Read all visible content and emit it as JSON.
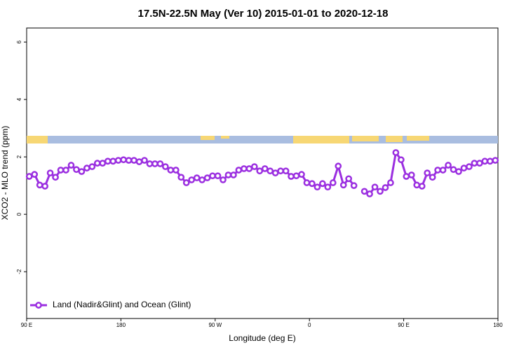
{
  "chart_data": {
    "type": "line",
    "title": "17.5N-22.5N May (Ver 10)   2015-01-01 to 2020-12-18",
    "x_label": "Longitude (deg E)",
    "y_label": "XCO2 - MLO trend (ppm)",
    "x": [
      92.5,
      97.5,
      102.5,
      107.5,
      112.5,
      117.5,
      122.5,
      127.5,
      132.5,
      137.5,
      142.5,
      147.5,
      152.5,
      157.5,
      162.5,
      167.5,
      172.5,
      177.5,
      182.5,
      187.5,
      192.5,
      197.5,
      202.5,
      207.5,
      212.5,
      217.5,
      222.5,
      227.5,
      232.5,
      237.5,
      242.5,
      247.5,
      252.5,
      257.5,
      262.5,
      267.5,
      272.5,
      277.5,
      282.5,
      287.5,
      292.5,
      297.5,
      302.5,
      307.5,
      312.5,
      317.5,
      322.5,
      327.5,
      332.5,
      337.5,
      342.5,
      347.5,
      352.5,
      357.5,
      362.5,
      367.5,
      372.5,
      377.5,
      382.5,
      387.5,
      392.5,
      397.5,
      402.5,
      407.5,
      412.5,
      417.5,
      422.5,
      427.5,
      432.5,
      437.5,
      442.5,
      447.5,
      452.5,
      457.5,
      462.5,
      467.5,
      472.5,
      477.5,
      482.5,
      487.5,
      492.5,
      497.5,
      502.5,
      507.5,
      512.5,
      517.5,
      522.5,
      527.5,
      532.5,
      537.5
    ],
    "series": [
      {
        "name": "Land (Nadir&Glint) and Ocean (Glint)",
        "color": "#9b2fe0",
        "values": [
          1.32,
          1.39,
          1.02,
          0.98,
          1.44,
          1.29,
          1.54,
          1.54,
          1.71,
          1.56,
          1.49,
          1.61,
          1.66,
          1.78,
          1.78,
          1.85,
          1.85,
          1.88,
          1.9,
          1.88,
          1.88,
          1.83,
          1.88,
          1.76,
          1.76,
          1.76,
          1.66,
          1.54,
          1.54,
          1.29,
          1.1,
          1.2,
          1.27,
          1.2,
          1.27,
          1.34,
          1.34,
          1.2,
          1.37,
          1.37,
          1.54,
          1.59,
          1.59,
          1.66,
          1.51,
          1.59,
          1.51,
          1.44,
          1.51,
          1.51,
          1.32,
          1.34,
          1.39,
          1.1,
          1.07,
          0.95,
          1.07,
          0.95,
          1.1,
          1.68,
          1.02,
          1.24,
          1.0,
          null,
          0.8,
          0.71,
          0.95,
          0.8,
          0.93,
          1.1,
          2.15,
          1.9,
          1.32,
          1.37,
          1.02,
          0.98,
          1.44,
          1.29,
          1.54,
          1.54,
          1.71,
          1.56,
          1.49,
          1.61,
          1.66,
          1.78,
          1.78,
          1.85,
          1.85,
          1.88
        ]
      }
    ],
    "xlim": [
      90,
      540
    ],
    "xticks": [
      {
        "value": 90,
        "label": "90 E"
      },
      {
        "value": 180,
        "label": "180"
      },
      {
        "value": 270,
        "label": "90 W"
      },
      {
        "value": 360,
        "label": "0"
      },
      {
        "value": 450,
        "label": "90 E"
      },
      {
        "value": 540,
        "label": "180"
      }
    ],
    "ylim": [
      -3.63,
      6.49
    ],
    "yticks": [
      -2,
      0,
      2,
      4,
      6
    ],
    "legend": "bottom-left"
  }
}
